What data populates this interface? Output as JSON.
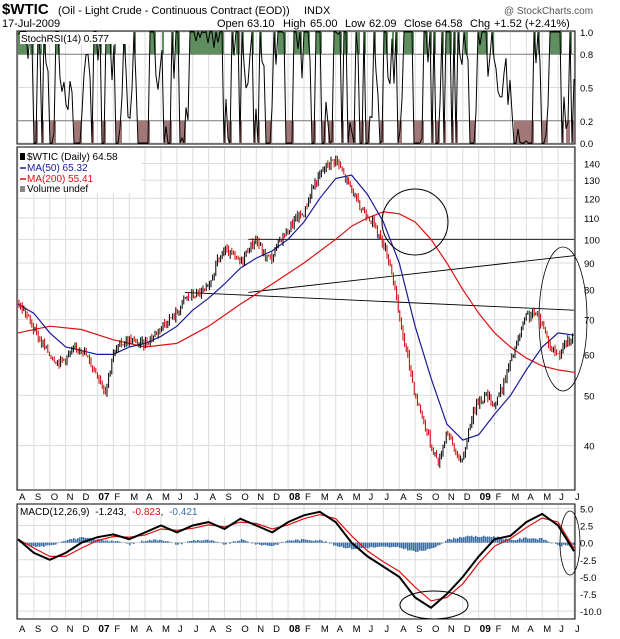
{
  "header": {
    "symbol": "$WTIC",
    "description": "(Oil - Light Crude - Continuous Contract (EOD))",
    "exchange": "INDX",
    "date": "17-Jul-2009",
    "open_label": "Open",
    "open": "63.10",
    "high_label": "High",
    "high": "65.00",
    "low_label": "Low",
    "low": "62.09",
    "close_label": "Close",
    "close": "64.58",
    "chg_label": "Chg",
    "chg": "+1.52 (+2.41%)",
    "watermark": "@ StockCharts.com"
  },
  "colors": {
    "price_up": "#000000",
    "price_down": "#cc0000",
    "ma50": "#1a1a99",
    "ma200": "#dd1111",
    "stoch_fill_high": "#5f8f5f",
    "stoch_fill_low": "#a07878",
    "macd_hist": "#3b6ea5",
    "signal": "#dd1111",
    "grid": "#dcdcdc"
  },
  "chart_data": [
    {
      "type": "line",
      "panel": "StochRSI",
      "legend": "StochRSI(14) 0.577",
      "ylim": [
        0,
        1
      ],
      "ticks": [
        "1.0",
        "0.8",
        "0.5",
        "0.2",
        "0.0"
      ],
      "tick_values": [
        1.0,
        0.8,
        0.5,
        0.2,
        0.0
      ],
      "overbought": 0.8,
      "oversold": 0.2,
      "last_value": 0.577
    },
    {
      "type": "line",
      "panel": "price",
      "scale": "log",
      "legend": [
        "$WTIC (Daily) 64.58",
        "MA(50) 65.32",
        "MA(200) 55.41",
        "Volume undef"
      ],
      "ticks": [
        "140",
        "130",
        "120",
        "110",
        "100",
        "90",
        "80",
        "70",
        "60",
        "50",
        "40"
      ],
      "tick_values": [
        140,
        130,
        120,
        110,
        100,
        90,
        80,
        70,
        60,
        50,
        40
      ],
      "ylim": [
        33,
        150
      ],
      "x_range": [
        0,
        35
      ],
      "x_unit": "months from Aug 2006",
      "series": [
        {
          "name": "$WTIC (Daily)",
          "last": 64.58,
          "x": [
            0,
            0.5,
            1,
            1.5,
            2,
            2.5,
            3,
            3.5,
            4,
            4.5,
            5,
            5.5,
            6,
            6.5,
            7,
            7.5,
            8,
            8.5,
            9,
            9.5,
            10,
            10.5,
            11,
            11.5,
            12,
            12.5,
            13,
            13.5,
            14,
            14.5,
            15,
            15.5,
            16,
            16.5,
            17,
            17.5,
            18,
            18.5,
            19,
            19.5,
            20,
            20.5,
            21,
            21.5,
            22,
            22.5,
            23,
            23.5,
            24,
            24.5,
            25,
            25.5,
            26,
            26.5,
            27,
            27.5,
            28,
            28.5,
            29,
            29.5,
            30,
            30.5,
            31,
            31.5,
            32,
            32.5,
            33,
            33.5,
            34,
            34.5,
            35
          ],
          "y": [
            75,
            72,
            67,
            63,
            60,
            58,
            59,
            61,
            62,
            58,
            55,
            51,
            60,
            63,
            64,
            63,
            63,
            65,
            68,
            70,
            72,
            77,
            78,
            79,
            80,
            90,
            95,
            93,
            90,
            96,
            100,
            93,
            92,
            100,
            104,
            110,
            112,
            125,
            133,
            140,
            143,
            133,
            125,
            115,
            112,
            105,
            98,
            88,
            70,
            60,
            50,
            45,
            40,
            37,
            43,
            39,
            37,
            45,
            49,
            50,
            48,
            52,
            58,
            64,
            71,
            72,
            69,
            62,
            60,
            63,
            64.58
          ]
        },
        {
          "name": "MA(50)",
          "last": 65.32,
          "x": [
            0,
            1,
            2,
            3,
            4,
            5,
            6,
            7,
            8,
            9,
            10,
            11,
            12,
            13,
            14,
            15,
            16,
            17,
            18,
            19,
            20,
            21,
            22,
            23,
            24,
            25,
            26,
            27,
            28,
            29,
            30,
            31,
            32,
            33,
            34,
            35
          ],
          "y": [
            75,
            72,
            66,
            62,
            61,
            60,
            60,
            62,
            63,
            65,
            68,
            73,
            77,
            82,
            88,
            92,
            95,
            100,
            108,
            120,
            131,
            133,
            122,
            108,
            90,
            68,
            54,
            44,
            41,
            42,
            46,
            50,
            56,
            62,
            66,
            65.32
          ]
        },
        {
          "name": "MA(200)",
          "last": 55.41,
          "x": [
            0,
            2,
            4,
            6,
            8,
            10,
            12,
            14,
            16,
            18,
            20,
            21,
            22,
            23,
            24,
            25,
            26,
            27,
            28,
            29,
            30,
            31,
            32,
            33,
            34,
            35
          ],
          "y": [
            66,
            68,
            67,
            64,
            62,
            63,
            68,
            75,
            82,
            90,
            100,
            106,
            110,
            113,
            112,
            108,
            100,
            90,
            80,
            72,
            66,
            62,
            59,
            57,
            56,
            55.41
          ]
        }
      ],
      "trendlines": [
        {
          "x": [
            14.5,
            35
          ],
          "y": [
            100,
            100
          ]
        },
        {
          "x": [
            14.5,
            35
          ],
          "y": [
            79,
            93
          ]
        },
        {
          "x": [
            10.5,
            35
          ],
          "y": [
            79,
            73
          ]
        }
      ]
    },
    {
      "type": "line",
      "panel": "MACD",
      "legend": "MACD(12,26,9) -1.243, -0.823, -0.421",
      "legend_parts": {
        "label": "MACD(12,26,9)",
        "macd": "-1.243",
        "signal": "-0.823",
        "hist": "-0.421"
      },
      "ylim": [
        -11,
        5.5
      ],
      "ticks": [
        "5.0",
        "2.5",
        "0.0",
        "-2.5",
        "-5.0",
        "-7.5",
        "-10.0"
      ],
      "tick_values": [
        5.0,
        2.5,
        0.0,
        -2.5,
        -5.0,
        -7.5,
        -10.0
      ],
      "series": [
        {
          "name": "MACD",
          "x": [
            0,
            1,
            2,
            3,
            4,
            5,
            6,
            7,
            8,
            9,
            10,
            11,
            12,
            13,
            14,
            15,
            16,
            17,
            18,
            19,
            20,
            21,
            22,
            23,
            24,
            25,
            26,
            27,
            28,
            29,
            30,
            31,
            32,
            33,
            34,
            35
          ],
          "y": [
            0.5,
            -1.5,
            -2.5,
            -1.5,
            0,
            0.8,
            1.2,
            0.5,
            1.5,
            2.5,
            1.5,
            2.5,
            3,
            2,
            3.5,
            2.5,
            1.5,
            3,
            4,
            4.5,
            3,
            0,
            -2,
            -3.5,
            -5,
            -8,
            -9.5,
            -7.5,
            -5,
            -2,
            0.5,
            1,
            3,
            4.2,
            2.5,
            -1.243
          ]
        },
        {
          "name": "Signal",
          "x": [
            0,
            1,
            2,
            3,
            4,
            5,
            6,
            7,
            8,
            9,
            10,
            11,
            12,
            13,
            14,
            15,
            16,
            17,
            18,
            19,
            20,
            21,
            22,
            23,
            24,
            25,
            26,
            27,
            28,
            29,
            30,
            31,
            32,
            33,
            34,
            35
          ],
          "y": [
            0.5,
            -0.8,
            -2,
            -2,
            -0.8,
            0.3,
            0.9,
            0.8,
            1.1,
            2,
            1.8,
            2.1,
            2.6,
            2.3,
            3,
            2.8,
            2,
            2.6,
            3.5,
            4.1,
            3.5,
            1,
            -1.2,
            -2.8,
            -4.2,
            -6.5,
            -8.5,
            -8,
            -6,
            -3,
            -0.5,
            0.6,
            2.2,
            3.6,
            3,
            -0.823
          ]
        }
      ]
    }
  ],
  "x_axis": {
    "labels": [
      "A",
      "S",
      "O",
      "N",
      "D",
      "07",
      "F",
      "M",
      "A",
      "M",
      "J",
      "J",
      "A",
      "S",
      "O",
      "N",
      "D",
      "08",
      "F",
      "M",
      "A",
      "M",
      "J",
      "J",
      "A",
      "S",
      "O",
      "N",
      "D",
      "09",
      "F",
      "M",
      "A",
      "M",
      "J",
      "J"
    ],
    "bold": [
      "07",
      "08",
      "09"
    ]
  }
}
